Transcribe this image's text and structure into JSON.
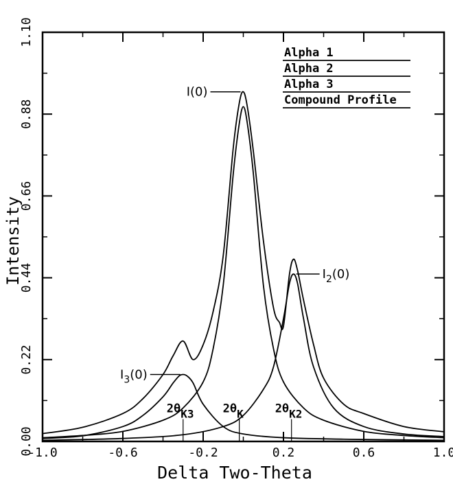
{
  "chart_data": {
    "type": "line",
    "title": "",
    "xlabel": "Delta Two-Theta",
    "ylabel": "Intensity",
    "xlim": [
      -1.0,
      1.0
    ],
    "ylim": [
      0.0,
      1.1
    ],
    "x_ticks": [
      {
        "value": -1.0,
        "label": "-1.0"
      },
      {
        "value": -0.6,
        "label": "-0.6"
      },
      {
        "value": -0.2,
        "label": "-0.2"
      },
      {
        "value": 0.2,
        "label": "0.2"
      },
      {
        "value": 0.6,
        "label": "0.6"
      },
      {
        "value": 1.0,
        "label": "1.0"
      }
    ],
    "y_ticks": [
      {
        "value": 0.0,
        "label": "0.00"
      },
      {
        "value": 0.22,
        "label": "0.22"
      },
      {
        "value": 0.44,
        "label": "0.44"
      },
      {
        "value": 0.66,
        "label": "0.66"
      },
      {
        "value": 0.88,
        "label": "0.88"
      },
      {
        "value": 1.1,
        "label": "1.10"
      }
    ],
    "grid": false,
    "legend_position": "top-right",
    "line_color": "#000000",
    "series": [
      {
        "name": "Alpha 1",
        "x": [
          -1.0,
          -0.8,
          -0.6,
          -0.4,
          -0.3,
          -0.2,
          -0.15,
          -0.1,
          -0.05,
          -0.02,
          0.0,
          0.02,
          0.05,
          0.1,
          0.15,
          0.2,
          0.3,
          0.4,
          0.6,
          0.8,
          1.0
        ],
        "values": [
          0.01,
          0.016,
          0.027,
          0.057,
          0.09,
          0.16,
          0.25,
          0.42,
          0.72,
          0.855,
          0.9,
          0.855,
          0.72,
          0.42,
          0.25,
          0.16,
          0.09,
          0.057,
          0.027,
          0.016,
          0.01
        ]
      },
      {
        "name": "Alpha 2",
        "x": [
          -1.0,
          -0.6,
          -0.3,
          -0.1,
          0.0,
          0.1,
          0.15,
          0.2,
          0.23,
          0.25,
          0.27,
          0.3,
          0.35,
          0.45,
          0.6,
          0.8,
          1.0
        ],
        "values": [
          0.003,
          0.008,
          0.018,
          0.04,
          0.07,
          0.14,
          0.2,
          0.33,
          0.425,
          0.45,
          0.425,
          0.33,
          0.2,
          0.09,
          0.04,
          0.02,
          0.013
        ]
      },
      {
        "name": "Alpha 3",
        "x": [
          -1.0,
          -0.8,
          -0.6,
          -0.5,
          -0.4,
          -0.35,
          -0.32,
          -0.3,
          -0.28,
          -0.25,
          -0.2,
          -0.1,
          0.0,
          0.2,
          0.5,
          0.8,
          1.0
        ],
        "values": [
          0.008,
          0.015,
          0.04,
          0.07,
          0.12,
          0.157,
          0.176,
          0.18,
          0.176,
          0.157,
          0.1,
          0.04,
          0.02,
          0.01,
          0.006,
          0.004,
          0.003
        ]
      },
      {
        "name": "Compound Profile",
        "x": [
          -1.0,
          -0.8,
          -0.6,
          -0.5,
          -0.4,
          -0.35,
          -0.3,
          -0.25,
          -0.2,
          -0.15,
          -0.1,
          -0.05,
          -0.02,
          0.0,
          0.02,
          0.05,
          0.1,
          0.15,
          0.18,
          0.2,
          0.23,
          0.25,
          0.27,
          0.3,
          0.35,
          0.4,
          0.5,
          0.6,
          0.8,
          1.0
        ],
        "values": [
          0.021,
          0.038,
          0.075,
          0.115,
          0.18,
          0.23,
          0.27,
          0.22,
          0.26,
          0.35,
          0.5,
          0.79,
          0.91,
          0.94,
          0.9,
          0.78,
          0.54,
          0.36,
          0.32,
          0.31,
          0.45,
          0.49,
          0.46,
          0.38,
          0.26,
          0.17,
          0.1,
          0.075,
          0.04,
          0.026
        ]
      }
    ],
    "annotations": [
      {
        "label_main": "I(0)",
        "label_sub": "",
        "x": 0.0,
        "y": 0.94
      },
      {
        "label_main": "I",
        "label_sub": "2",
        "label_tail": "(0)",
        "x": 0.25,
        "y": 0.45
      },
      {
        "label_main": "I",
        "label_sub": "3",
        "label_tail": "(0)",
        "x": -0.3,
        "y": 0.18
      }
    ],
    "position_markers": [
      {
        "label_main": "2θ",
        "label_sub": "K3",
        "x": -0.3
      },
      {
        "label_main": "2θ",
        "label_sub": "K",
        "x": -0.02
      },
      {
        "label_main": "2θ",
        "label_sub": "K2",
        "x": 0.24
      }
    ]
  }
}
